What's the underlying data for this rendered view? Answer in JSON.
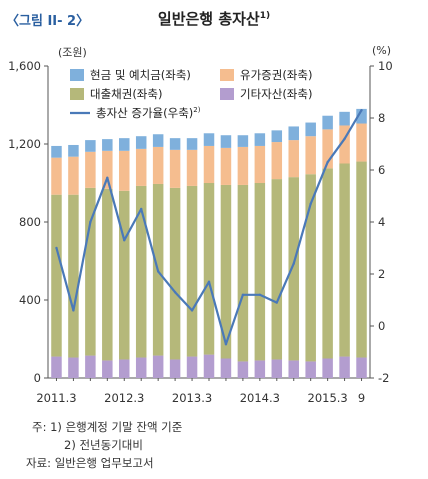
{
  "figure_label": "〈그림 II- 2〉",
  "title": "일반은행 총자산",
  "title_sup": "1)",
  "chart_data": {
    "type": "bar",
    "stacked": true,
    "left_axis": {
      "unit": "(조원)",
      "range": [
        0,
        1600
      ],
      "ticks": [
        0,
        400,
        800,
        1200,
        1600
      ],
      "tick_labels": [
        "0",
        "400",
        "800",
        "1,200",
        "1,600"
      ]
    },
    "right_axis": {
      "unit": "(%)",
      "range": [
        -2,
        10
      ],
      "ticks": [
        -2,
        0,
        2,
        4,
        6,
        8,
        10
      ],
      "tick_labels": [
        "-2",
        "0",
        "2",
        "4",
        "6",
        "8",
        "10"
      ]
    },
    "x_tick_labels": [
      {
        "label": "2011.3",
        "index": 0
      },
      {
        "label": "2012.3",
        "index": 4
      },
      {
        "label": "2013.3",
        "index": 8
      },
      {
        "label": "2014.3",
        "index": 12
      },
      {
        "label": "2015.3",
        "index": 16
      },
      {
        "label": "9",
        "index": 18
      }
    ],
    "categories": [
      "2011.3",
      "2011.6",
      "2011.9",
      "2011.12",
      "2012.3",
      "2012.6",
      "2012.9",
      "2012.12",
      "2013.3",
      "2013.6",
      "2013.9",
      "2013.12",
      "2014.3",
      "2014.6",
      "2014.9",
      "2014.12",
      "2015.3",
      "2015.6",
      "2015.9"
    ],
    "series": [
      {
        "name": "기타자산(좌축)",
        "color": "#b39dcf",
        "axis": "left",
        "values": [
          110,
          105,
          115,
          90,
          95,
          105,
          115,
          95,
          110,
          120,
          100,
          85,
          90,
          95,
          90,
          85,
          100,
          110,
          105
        ]
      },
      {
        "name": "대출채권(좌축)",
        "color": "#b5b87a",
        "axis": "left",
        "values": [
          830,
          835,
          860,
          880,
          865,
          880,
          880,
          880,
          875,
          880,
          890,
          905,
          910,
          925,
          940,
          960,
          975,
          990,
          1005
        ]
      },
      {
        "name": "유가증권(좌축)",
        "color": "#f5bd8f",
        "axis": "left",
        "values": [
          190,
          195,
          185,
          195,
          205,
          190,
          190,
          195,
          185,
          190,
          190,
          195,
          190,
          190,
          190,
          195,
          200,
          195,
          195
        ]
      },
      {
        "name": "현금 및 예치금(좌축)",
        "color": "#7fb0dc",
        "axis": "left",
        "values": [
          60,
          60,
          60,
          60,
          65,
          65,
          65,
          60,
          60,
          65,
          65,
          60,
          65,
          60,
          70,
          70,
          70,
          70,
          75
        ]
      },
      {
        "name": "총자산 증가율(우축)",
        "name_sup": "2)",
        "color": "#4a79b8",
        "axis": "right",
        "type": "line",
        "values": [
          3.0,
          0.6,
          4.0,
          5.7,
          3.3,
          4.5,
          2.1,
          1.3,
          0.6,
          1.7,
          -0.7,
          1.2,
          1.2,
          0.9,
          2.4,
          4.7,
          6.3,
          7.2,
          8.3
        ]
      }
    ],
    "legend_order": [
      3,
      2,
      1,
      0,
      4
    ]
  },
  "notes": {
    "line1": "주: 1) 은행계정 기말 잔액 기준",
    "line2": "2) 전년동기대비",
    "line3": "자료: 일반은행 업무보고서"
  }
}
